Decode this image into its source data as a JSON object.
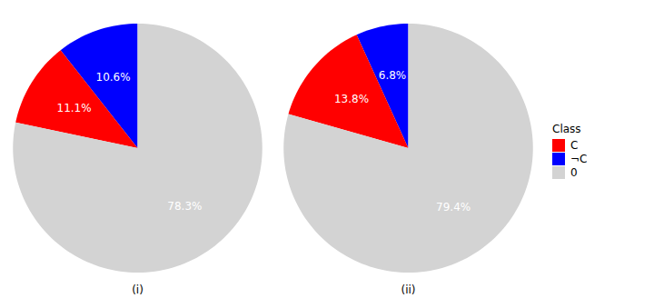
{
  "chart_data": [
    {
      "type": "pie",
      "xlabel": "(i)",
      "values": [
        10.6,
        11.1,
        78.3
      ],
      "value_labels": [
        "10.6%",
        "11.1%",
        "78.3%"
      ],
      "colors": [
        "#0000ff",
        "#ff0000",
        "#d3d3d3"
      ],
      "data_labels": true,
      "data_label_color": "white"
    },
    {
      "type": "pie",
      "xlabel": "(ii)",
      "values": [
        6.8,
        13.8,
        79.4
      ],
      "value_labels": [
        "6.8%",
        "13.8%",
        "79.4%"
      ],
      "colors": [
        "#0000ff",
        "#ff0000",
        "#d3d3d3"
      ],
      "data_labels": true,
      "data_label_color": "white",
      "legend": "right",
      "legend_title": "Class",
      "legend_labels": [
        "C",
        "¬C",
        "0"
      ],
      "legend_colors": [
        "#ff0000",
        "#0000ff",
        "#d3d3d3"
      ]
    }
  ]
}
